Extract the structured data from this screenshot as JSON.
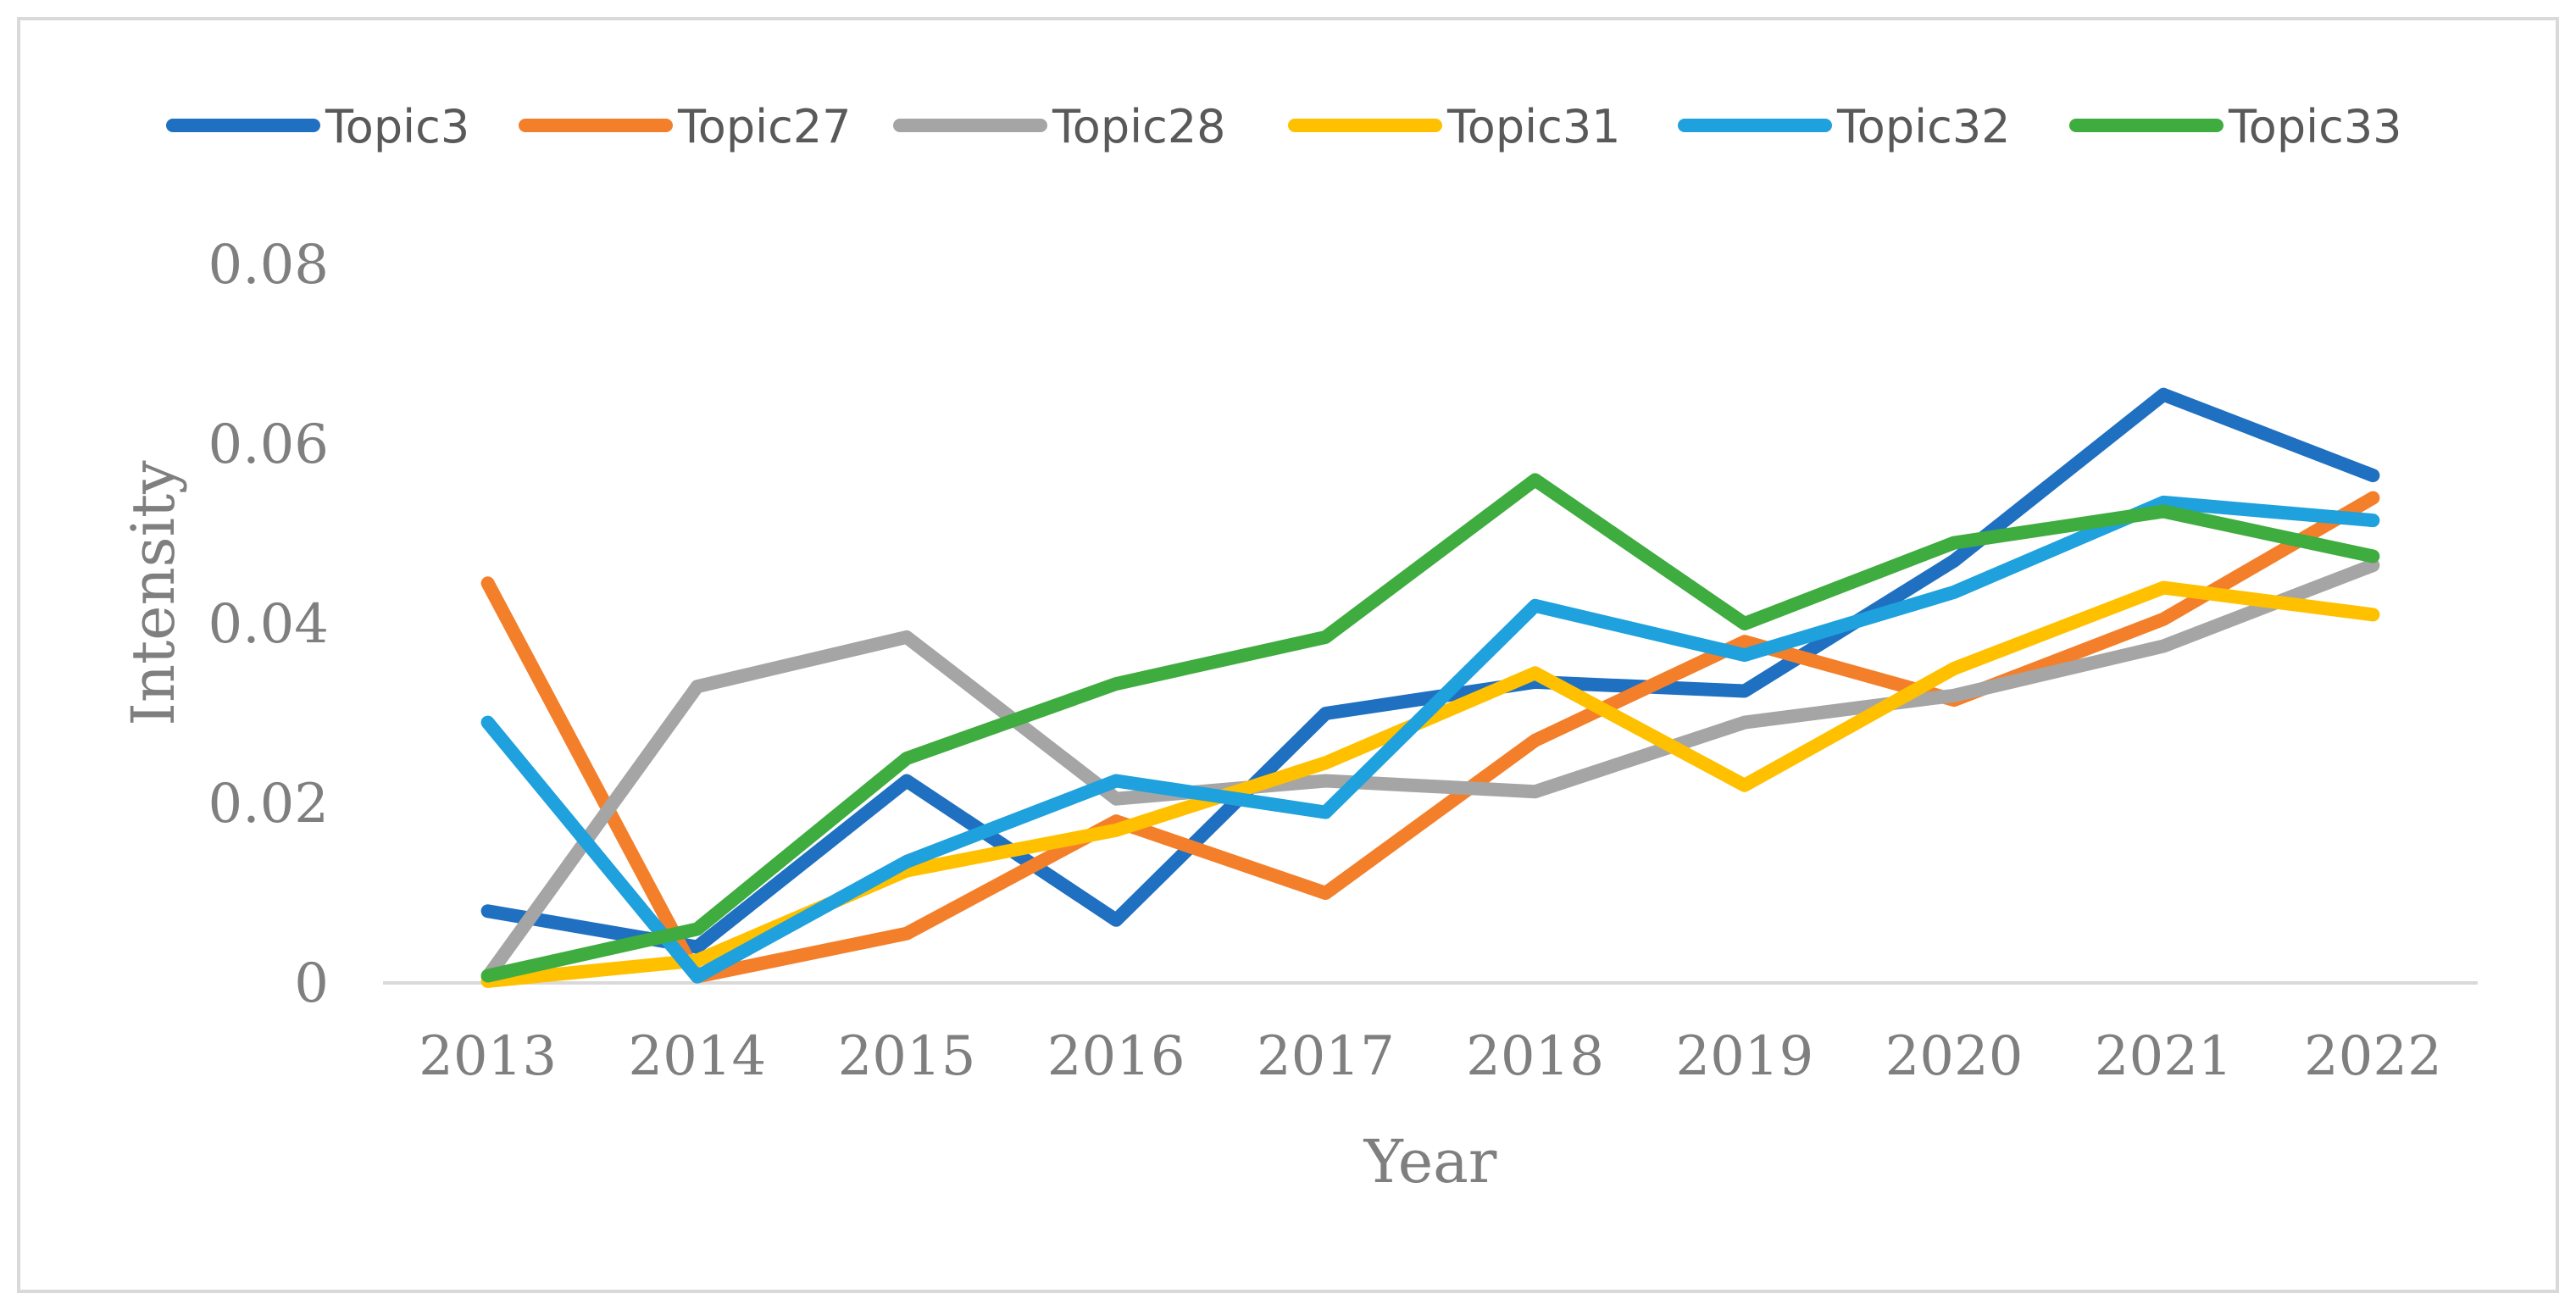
{
  "chart_data": {
    "type": "line",
    "title": "",
    "xlabel": "Year",
    "ylabel": "Intensity",
    "categories": [
      "2013",
      "2014",
      "2015",
      "2016",
      "2017",
      "2018",
      "2019",
      "2020",
      "2021",
      "2022"
    ],
    "y_ticks": [
      "0",
      "0.02",
      "0.04",
      "0.06",
      "0.08"
    ],
    "ylim": [
      0,
      0.08
    ],
    "grid": false,
    "legend": "top",
    "series": [
      {
        "name": "Topic3",
        "color": "#1f70c1",
        "values": [
          0.008,
          0.004,
          0.0225,
          0.007,
          0.03,
          0.0335,
          0.0325,
          0.047,
          0.0655,
          0.0565
        ]
      },
      {
        "name": "Topic27",
        "color": "#f47f2a",
        "values": [
          0.0445,
          0.0007,
          0.0055,
          0.018,
          0.01,
          0.027,
          0.038,
          0.0315,
          0.0405,
          0.054
        ]
      },
      {
        "name": "Topic28",
        "color": "#a5a5a5",
        "values": [
          0.0007,
          0.033,
          0.0385,
          0.0205,
          0.0225,
          0.0213,
          0.029,
          0.032,
          0.0375,
          0.0465
        ]
      },
      {
        "name": "Topic31",
        "color": "#ffc000",
        "values": [
          0.0002,
          0.0025,
          0.0125,
          0.017,
          0.0245,
          0.0345,
          0.022,
          0.035,
          0.044,
          0.041
        ]
      },
      {
        "name": "Topic32",
        "color": "#1ea1dd",
        "values": [
          0.029,
          0.0007,
          0.0135,
          0.0225,
          0.019,
          0.042,
          0.0365,
          0.0435,
          0.0535,
          0.0515
        ]
      },
      {
        "name": "Topic33",
        "color": "#3fac3f",
        "values": [
          0.0008,
          0.006,
          0.025,
          0.0333,
          0.0385,
          0.056,
          0.04,
          0.049,
          0.0525,
          0.0475
        ]
      }
    ]
  }
}
